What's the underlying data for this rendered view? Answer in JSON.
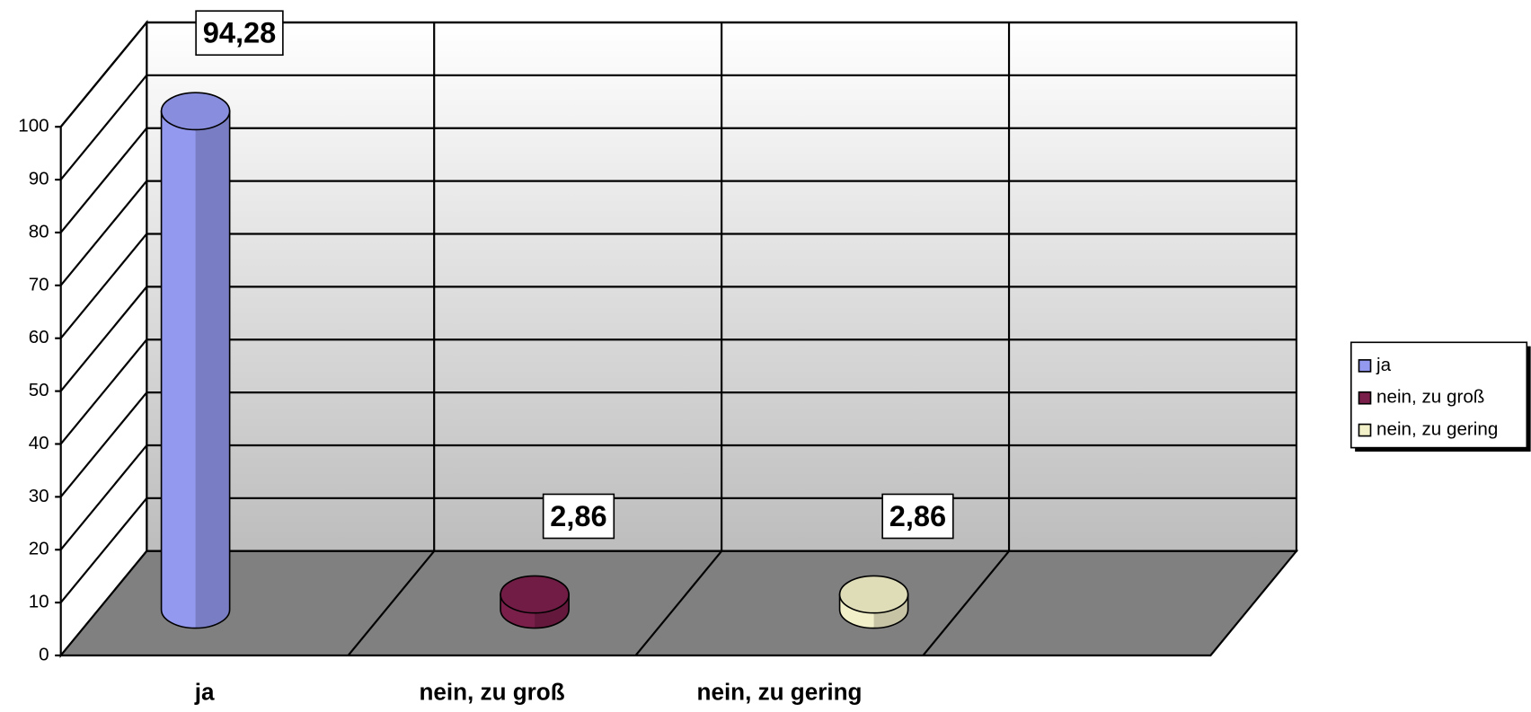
{
  "chart_data": {
    "type": "cylinder3d",
    "categories": [
      "ja",
      "nein, zu groß",
      "nein, zu gering",
      null
    ],
    "values": [
      94.28,
      2.86,
      2.86,
      null
    ],
    "value_labels": [
      "94,28",
      "2,86",
      "2,86",
      null
    ],
    "colors": [
      "#9499f0",
      "#7a1f4a",
      "#f2f0c8",
      null
    ],
    "ylim": [
      0,
      100
    ],
    "yticks": [
      0,
      10,
      20,
      30,
      40,
      50,
      60,
      70,
      80,
      90,
      100
    ],
    "grid": true,
    "legend": "right"
  }
}
